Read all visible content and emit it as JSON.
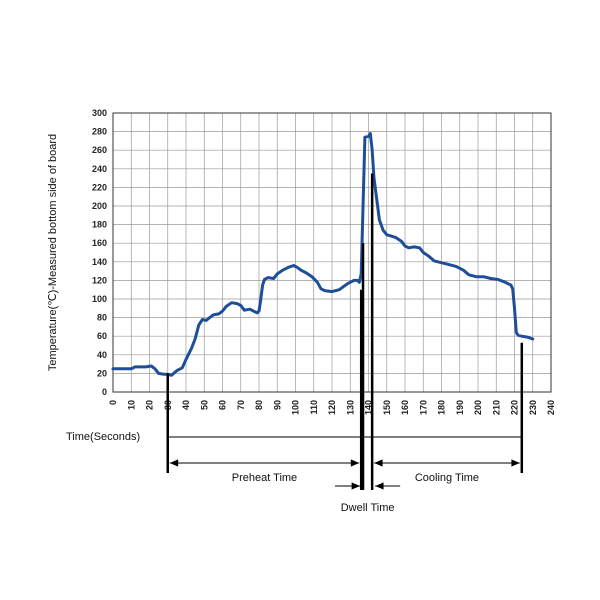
{
  "chart_data": {
    "type": "line",
    "title": "",
    "xlabel": "Time(Seconds)",
    "ylabel": "Temperature(℃)-Measured bottom side of board",
    "xlim": [
      0,
      240
    ],
    "ylim": [
      0,
      300
    ],
    "x_ticks": [
      0,
      10,
      20,
      30,
      40,
      50,
      60,
      70,
      80,
      90,
      100,
      110,
      120,
      130,
      140,
      150,
      160,
      170,
      180,
      190,
      200,
      210,
      220,
      230,
      240
    ],
    "y_ticks": [
      0,
      20,
      40,
      60,
      80,
      100,
      120,
      140,
      160,
      180,
      200,
      220,
      240,
      260,
      280,
      300
    ],
    "grid": true,
    "line_color": "#1f4e99",
    "series": [
      {
        "x": [
          0,
          5,
          10,
          12,
          15,
          18,
          21,
          23,
          25,
          28,
          30,
          32,
          35,
          38,
          40,
          43,
          45,
          47,
          49,
          51,
          53,
          55,
          58,
          60,
          62,
          65,
          68,
          70,
          72,
          75,
          77,
          79,
          80,
          81,
          82,
          83,
          85,
          88,
          90,
          93,
          96,
          99,
          101,
          103,
          106,
          109,
          112,
          114,
          116,
          120,
          124,
          126,
          129,
          132,
          133,
          134,
          135,
          136,
          138,
          140,
          141,
          142,
          143,
          145,
          146,
          148,
          150,
          152,
          155,
          158,
          160,
          162,
          165,
          168,
          170,
          173,
          176,
          180,
          184,
          188,
          192,
          195,
          199,
          203,
          207,
          211,
          215,
          218,
          219,
          220,
          221,
          222,
          224,
          227,
          230
        ],
        "y": [
          25,
          25,
          25,
          27,
          27,
          27,
          28,
          25,
          20,
          19,
          19,
          18,
          23,
          26,
          35,
          47,
          57,
          72,
          78,
          77,
          80,
          83,
          84,
          87,
          92,
          96,
          95,
          93,
          88,
          89,
          87,
          85,
          87,
          100,
          115,
          121,
          123,
          122,
          127,
          131,
          134,
          136,
          134,
          131,
          128,
          124,
          118,
          111,
          109,
          108,
          110,
          113,
          117,
          120,
          120,
          120,
          118,
          127,
          274,
          275,
          278,
          261,
          230,
          200,
          185,
          174,
          169,
          168,
          166,
          162,
          157,
          155,
          156,
          155,
          150,
          146,
          141,
          139,
          137,
          135,
          131,
          126,
          124,
          124,
          122,
          121,
          118,
          115,
          111,
          90,
          64,
          61,
          60,
          59,
          57
        ]
      }
    ],
    "annotations": [
      {
        "text": "Preheat Time",
        "x_start": 30,
        "x_end": 136
      },
      {
        "text": "Dwell Time",
        "x_start": 137,
        "x_end": 142
      },
      {
        "text": "Cooling Time",
        "x_start": 142,
        "x_end": 224
      }
    ]
  }
}
